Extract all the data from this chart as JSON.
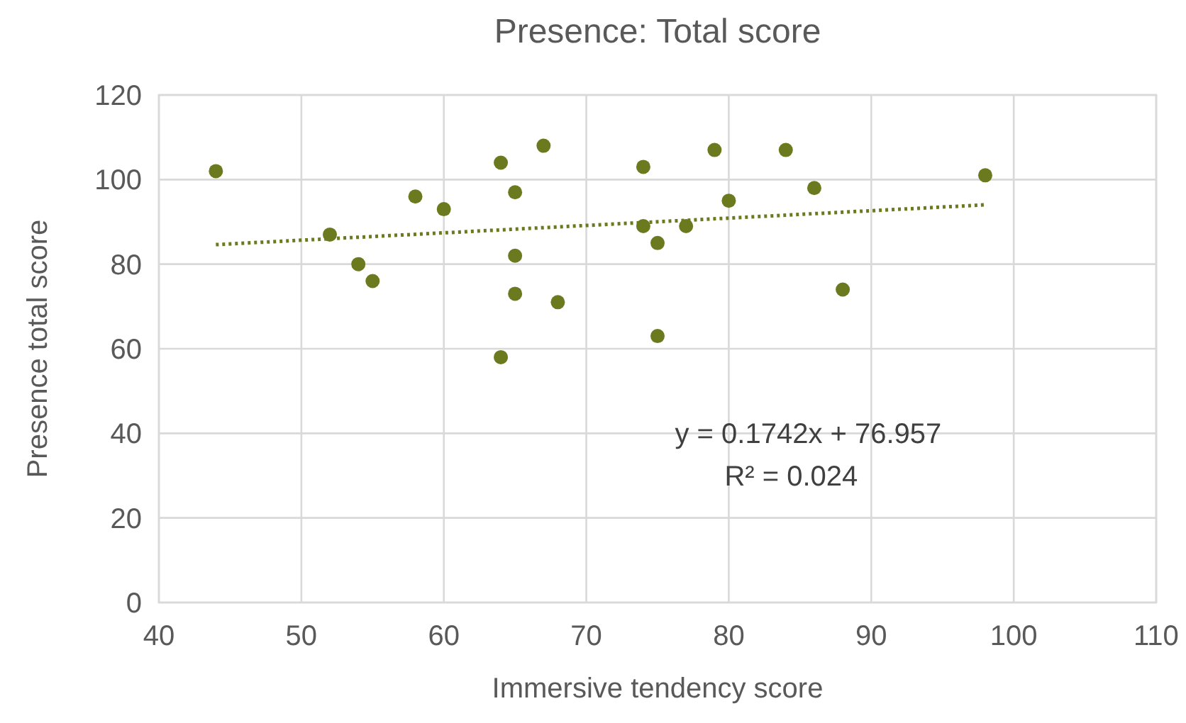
{
  "chart_data": {
    "type": "scatter",
    "title": "Presence: Total score",
    "xlabel": "Immersive tendency score",
    "ylabel": "Presence total score",
    "xlim": [
      40,
      110
    ],
    "xticks": [
      40,
      50,
      60,
      70,
      80,
      90,
      100,
      110
    ],
    "ylim": [
      0,
      120
    ],
    "yticks": [
      0,
      20,
      40,
      60,
      80,
      100,
      120
    ],
    "grid": true,
    "marker": "circle",
    "annotations": [
      "y = 0.1742x + 76.957",
      "R² = 0.024"
    ],
    "series": [
      {
        "color": "#6b7a1e",
        "x": [
          44,
          52,
          54,
          55,
          58,
          60,
          64,
          64,
          65,
          65,
          65,
          67,
          68,
          74,
          74,
          75,
          75,
          77,
          79,
          80,
          84,
          86,
          88,
          98
        ],
        "values": [
          102,
          87,
          80,
          76,
          96,
          93,
          104,
          58,
          97,
          82,
          73,
          108,
          71,
          103,
          89,
          85,
          63,
          89,
          107,
          95,
          107,
          98,
          74,
          101
        ]
      },
      {
        "type": "line",
        "line_style": "dotted",
        "marker": "none",
        "color": "#6b7a1e",
        "x": [
          44,
          98
        ],
        "values": [
          84.62,
          94.03
        ]
      }
    ]
  }
}
